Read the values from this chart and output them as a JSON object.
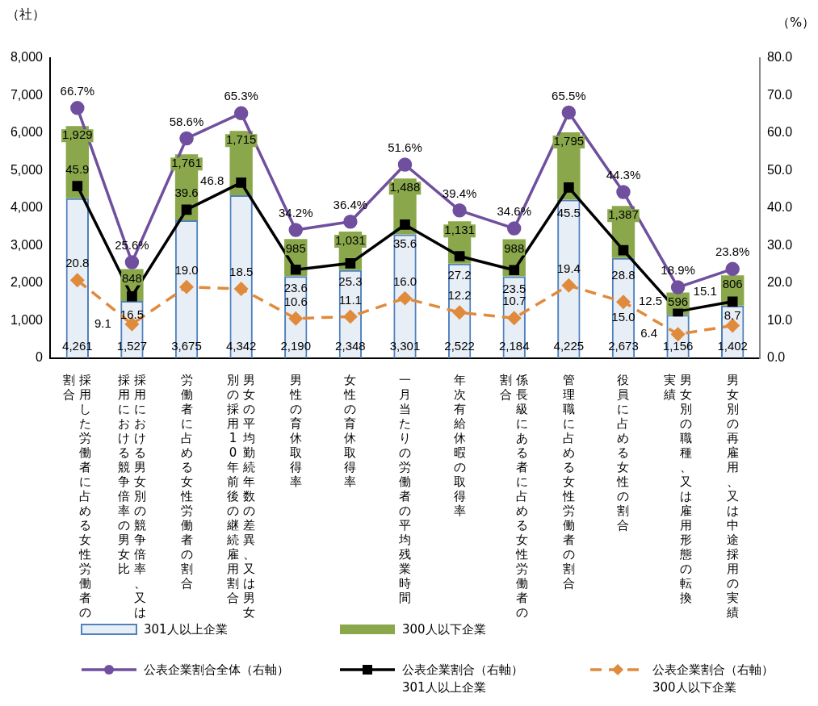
{
  "chart_data": {
    "type": "bar",
    "ylabel": "（社）",
    "y2label": "（%）",
    "categories": [
      "採用した労働者に占める女性労働者の割合",
      "採用における男女別の競争倍率、又は採用における競争倍率の男女比",
      "労働者に占める女性労働者の割合",
      "男女の平均勤続年数の差異、又は男女別の採用10年前後の継続雇用割合",
      "男性の育休取得率",
      "女性の育休取得率",
      "一月当たりの労働者の平均残業時間",
      "年次有給休暇の取得率",
      "係長級にある者に占める女性労働者の割合",
      "管理職に占める女性労働者の割合",
      "役員に占める女性の割合",
      "男女別の職種、又は雇用形態の転換実績",
      "男女別の再雇用、又は中途採用の実績"
    ],
    "stacked": true,
    "grid": false,
    "legend": "bottom",
    "series": [
      {
        "name": "301人以上企業",
        "color": "#4f81bd",
        "values": [
          4261,
          1527,
          3675,
          4342,
          2190,
          2348,
          3301,
          2522,
          2184,
          4225,
          2673,
          1156,
          1402
        ],
        "value_labels": [
          "4,261",
          "1,527",
          "3,675",
          "4,342",
          "2,190",
          "2,348",
          "3,301",
          "2,522",
          "2,184",
          "4,225",
          "2,673",
          "1,156",
          "1,402"
        ]
      },
      {
        "name": "300人以下企業",
        "color": "#8aa84b",
        "values": [
          1929,
          848,
          1761,
          1715,
          985,
          1031,
          1488,
          1131,
          988,
          1795,
          1387,
          596,
          806
        ],
        "value_labels": [
          "1,929",
          "848",
          "1,761",
          "1,715",
          "985",
          "1,031",
          "1,488",
          "1,131",
          "988",
          "1,795",
          "1,387",
          "596",
          "806"
        ]
      },
      {
        "type": "line",
        "axis": "y2",
        "marker": "circle",
        "line_style": "solid",
        "name": "公表企業割合全体（右軸）",
        "color": "#70509e",
        "values": [
          66.7,
          25.6,
          58.6,
          65.3,
          34.2,
          36.4,
          51.6,
          39.4,
          34.6,
          65.5,
          44.3,
          18.9,
          23.8
        ],
        "value_labels": [
          "66.7%",
          "25.6%",
          "58.6%",
          "65.3%",
          "34.2%",
          "36.4%",
          "51.6%",
          "39.4%",
          "34.6%",
          "65.5%",
          "44.3%",
          "18.9%",
          "23.8%"
        ]
      },
      {
        "type": "line",
        "axis": "y2",
        "marker": "square",
        "line_style": "solid",
        "name": "公表企業割合（右軸）\n301人以上企業",
        "color": "#000000",
        "values": [
          45.9,
          16.5,
          39.6,
          46.8,
          23.6,
          25.3,
          35.6,
          27.2,
          23.5,
          45.5,
          28.8,
          12.5,
          15.1
        ],
        "value_labels": [
          "45.9",
          "16.5",
          "39.6",
          "46.8",
          "23.6",
          "25.3",
          "35.6",
          "27.2",
          "23.5",
          "45.5",
          "28.8",
          "12.5",
          "15.1"
        ]
      },
      {
        "type": "line",
        "axis": "y2",
        "marker": "diamond",
        "line_style": "dashed",
        "name": "公表企業割合（右軸）\n300人以下企業",
        "color": "#e08a3c",
        "values": [
          20.8,
          9.1,
          19.0,
          18.5,
          10.6,
          11.1,
          16.0,
          12.2,
          10.7,
          19.4,
          15.0,
          6.4,
          8.7
        ],
        "value_labels": [
          "20.8",
          "9.1",
          "19.0",
          "18.5",
          "10.6",
          "11.1",
          "16.0",
          "12.2",
          "10.7",
          "19.4",
          "15.0",
          "6.4",
          "8.7"
        ]
      }
    ],
    "ylim": [
      0,
      8000
    ],
    "yticks": [
      0,
      {
        "value": 1000,
        "label": "1,000"
      },
      {
        "value": 2000,
        "label": "2,000"
      },
      {
        "value": 3000,
        "label": "3,000"
      },
      {
        "value": 4000,
        "label": "4,000"
      },
      {
        "value": 5000,
        "label": "5,000"
      },
      {
        "value": 6000,
        "label": "6,000"
      },
      {
        "value": 7000,
        "label": "7,000"
      },
      {
        "value": 8000,
        "label": "8,000"
      }
    ],
    "y2lim": [
      0,
      80
    ],
    "y2ticks": [
      {
        "value": 0,
        "label": "0.0"
      },
      {
        "value": 10,
        "label": "10.0"
      },
      {
        "value": 20,
        "label": "20.0"
      },
      {
        "value": 30,
        "label": "30.0"
      },
      {
        "value": 40,
        "label": "40.0"
      },
      {
        "value": 50,
        "label": "50.0"
      },
      {
        "value": 60,
        "label": "60.0"
      },
      {
        "value": 70,
        "label": "70.0"
      },
      {
        "value": 80,
        "label": "80.0"
      }
    ]
  }
}
